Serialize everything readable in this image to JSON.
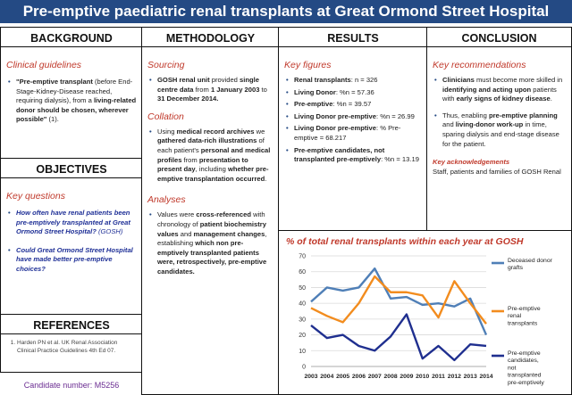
{
  "title": "Pre-emptive paediatric renal transplants at Great Ormond Street Hospital",
  "background": {
    "heading": "BACKGROUND",
    "subheading": "Clinical guidelines",
    "quote_pre": "\"Pre-emptive transplant",
    "quote_mid": " (before End-Stage-Kidney-Disease reached, requiring dialysis), from a ",
    "quote_bold": "living-related donor should be chosen, wherever possible\"",
    "quote_end": " (1)."
  },
  "objectives": {
    "heading": "OBJECTIVES",
    "subheading": "Key questions",
    "q1": "How often have renal patients been pre-emptively transplanted at Great Ormond Street Hospital?",
    "q1_suffix": " (GOSH)",
    "q2": "Could Great Ormond Street Hospital have made better pre-emptive choices?"
  },
  "references": {
    "heading": "REFERENCES",
    "items": [
      "Harden PN et al. UK Renal Association Clinical Practice Guidelines 4th Ed 07."
    ]
  },
  "candidate": "Candidate number: M5256",
  "methodology": {
    "heading": "METHODOLOGY",
    "sourcing_title": "Sourcing",
    "sourcing_bold": "GOSH renal unit",
    "sourcing_mid": " provided ",
    "sourcing_bold2": "single centre data",
    "sourcing_mid2": " from ",
    "sourcing_bold3": "1 January 2003",
    "sourcing_mid3": " to ",
    "sourcing_bold4": "31 December 2014.",
    "collation_title": "Collation",
    "collation_parts": [
      {
        "t": "Using ",
        "b": false
      },
      {
        "t": "medical record archives",
        "b": true
      },
      {
        "t": " we ",
        "b": false
      },
      {
        "t": "gathered data-rich illustrations",
        "b": true
      },
      {
        "t": " of each patient's ",
        "b": false
      },
      {
        "t": "personal and medical profiles",
        "b": true
      },
      {
        "t": " from ",
        "b": false
      },
      {
        "t": "presentation to present day",
        "b": true
      },
      {
        "t": ", including ",
        "b": false
      },
      {
        "t": "whether pre-emptive transplantation occurred",
        "b": true
      },
      {
        "t": ".",
        "b": false
      }
    ],
    "analyses_title": "Analyses",
    "analyses_parts": [
      {
        "t": "Values were ",
        "b": false
      },
      {
        "t": "cross-referenced",
        "b": true
      },
      {
        "t": " with chronology of ",
        "b": false
      },
      {
        "t": "patient biochemistry values",
        "b": true
      },
      {
        "t": " and ",
        "b": false
      },
      {
        "t": "management changes",
        "b": true
      },
      {
        "t": ", establishing ",
        "b": false
      },
      {
        "t": "which non pre-emptively transplanted patients were, retrospectively, pre-emptive candidates.",
        "b": true
      }
    ]
  },
  "results": {
    "heading": "RESULTS",
    "subheading": "Key figures",
    "items": [
      {
        "label": "Renal transplants",
        "value": ": n = 326"
      },
      {
        "label": "Living Donor",
        "value": ": %n = 57.36"
      },
      {
        "label": "Pre-emptive",
        "value": ": %n = 39.57"
      },
      {
        "label": "Living Donor pre-emptive",
        "value": ": %n = 26.99"
      },
      {
        "label": "Living Donor pre-emptive",
        "value": ": % Pre-emptive = 68.217"
      },
      {
        "label": "Pre-emptive candidates, not transplanted pre-emptively",
        "value": ": %n = 13.19"
      }
    ]
  },
  "conclusion": {
    "heading": "CONCLUSION",
    "subheading": "Key recommendations",
    "rec1_parts": [
      {
        "t": "Clinicians",
        "b": true
      },
      {
        "t": " must become more skilled in ",
        "b": false
      },
      {
        "t": "identifying and acting upon",
        "b": true
      },
      {
        "t": " patients with ",
        "b": false
      },
      {
        "t": "early signs of kidney disease",
        "b": true
      },
      {
        "t": ".",
        "b": false
      }
    ],
    "rec2_parts": [
      {
        "t": "Thus, enabling ",
        "b": false
      },
      {
        "t": "pre-emptive planning",
        "b": true
      },
      {
        "t": " and ",
        "b": false
      },
      {
        "t": "living-donor work-up",
        "b": true
      },
      {
        "t": " in time, sparing dialysis and end-stage disease for the patient.",
        "b": false
      }
    ],
    "ack_title": "Key acknowledgements",
    "ack_text": "Staff, patients and families of GOSH Renal"
  },
  "chart_data": {
    "type": "line",
    "title": "% of total renal transplants within each year at GOSH",
    "x": [
      "2003",
      "2004",
      "2005",
      "2006",
      "2007",
      "2008",
      "2009",
      "2010",
      "2011",
      "2012",
      "2013",
      "2014"
    ],
    "ylim": [
      0,
      70
    ],
    "yticks": [
      0,
      10,
      20,
      30,
      40,
      50,
      60,
      70
    ],
    "grid": true,
    "legend_placement": "right",
    "series": [
      {
        "name": "Deceased donor grafts",
        "color": "#4f7fb7",
        "values": [
          41,
          50,
          48,
          50,
          62,
          43,
          44,
          39,
          40,
          38,
          43,
          20
        ]
      },
      {
        "name": "Pre-emptive renal transplants",
        "color": "#f28c1e",
        "values": [
          37,
          32,
          28,
          40,
          57,
          47,
          47,
          45,
          31,
          54,
          40,
          27
        ]
      },
      {
        "name": "Pre-emptive candidates, not transplanted pre-emptively",
        "color": "#1f2f8f",
        "values": [
          26,
          18,
          20,
          13,
          10,
          19,
          33,
          5,
          13,
          4,
          14,
          13
        ]
      }
    ]
  }
}
